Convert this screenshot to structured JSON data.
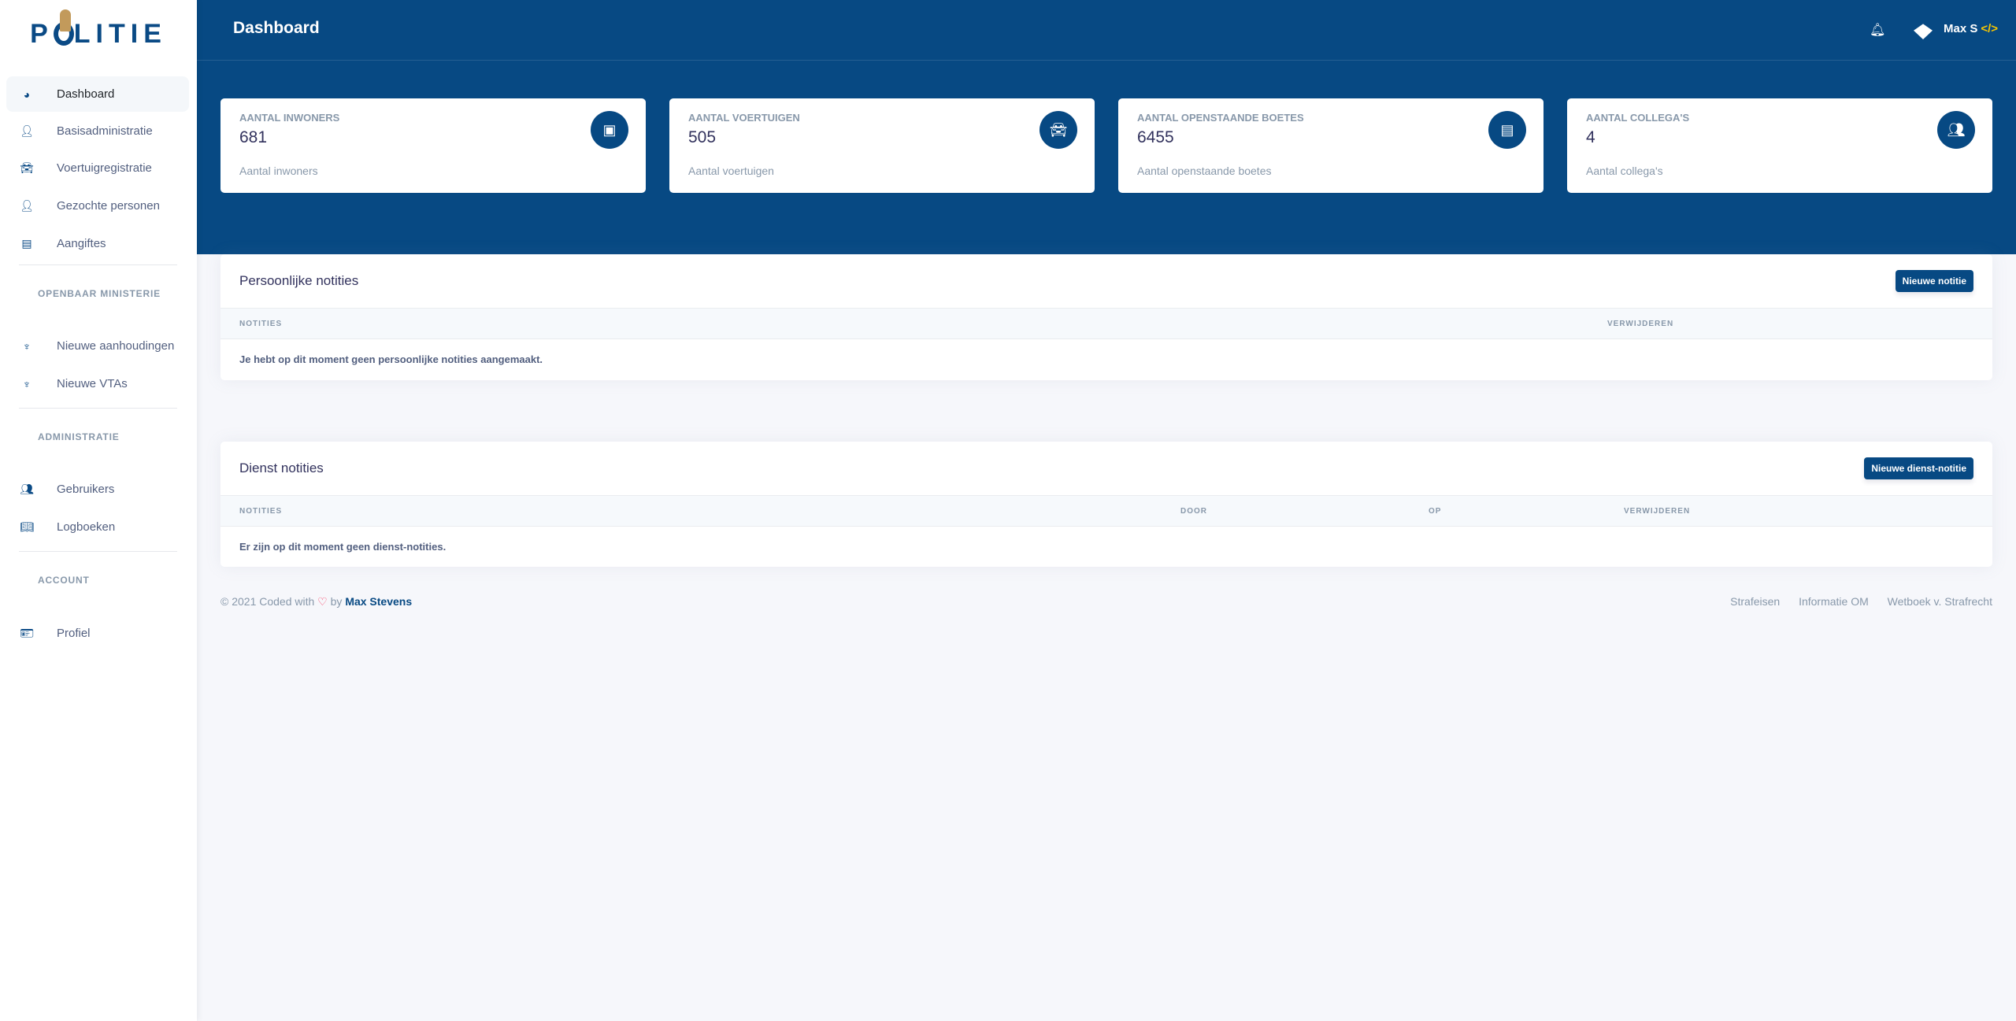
{
  "logo": "POLITIE",
  "sidebar": {
    "items": [
      {
        "label": "Dashboard",
        "icon": "pie-chart-icon"
      },
      {
        "label": "Basisadministratie",
        "icon": "user-icon"
      },
      {
        "label": "Voertuigregistratie",
        "icon": "car-icon"
      },
      {
        "label": "Gezochte personen",
        "icon": "user-lock-icon"
      },
      {
        "label": "Aangiftes",
        "icon": "file-icon"
      }
    ],
    "sections": [
      {
        "title": "OPENBAAR MINISTERIE",
        "items": [
          {
            "label": "Nieuwe aanhoudingen",
            "icon": "om-emblem-icon"
          },
          {
            "label": "Nieuwe VTAs",
            "icon": "om-emblem-icon"
          }
        ]
      },
      {
        "title": "ADMINISTRATIE",
        "items": [
          {
            "label": "Gebruikers",
            "icon": "users-icon"
          },
          {
            "label": "Logboeken",
            "icon": "book-icon"
          }
        ]
      },
      {
        "title": "ACCOUNT",
        "items": [
          {
            "label": "Profiel",
            "icon": "id-card-icon"
          }
        ]
      }
    ]
  },
  "header": {
    "title": "Dashboard",
    "user": "Max S",
    "user_tag": "</>"
  },
  "stats": [
    {
      "label": "Aantal inwoners",
      "value": "681",
      "sub": "Aantal inwoners",
      "icon": "id-card-icon"
    },
    {
      "label": "Aantal voertuigen",
      "value": "505",
      "sub": "Aantal voertuigen",
      "icon": "car-icon"
    },
    {
      "label": "Aantal openstaande boetes",
      "value": "6455",
      "sub": "Aantal openstaande boetes",
      "icon": "receipt-icon"
    },
    {
      "label": "Aantal collega's",
      "value": "4",
      "sub": "Aantal collega's",
      "icon": "users-icon"
    }
  ],
  "personal": {
    "title": "Persoonlijke notities",
    "button": "Nieuwe notitie",
    "columns": [
      "NOTITIES",
      "VERWIJDEREN"
    ],
    "empty": "Je hebt op dit moment geen persoonlijke notities aangemaakt."
  },
  "service": {
    "title": "Dienst notities",
    "button": "Nieuwe dienst-notitie",
    "columns": [
      "NOTITIES",
      "DOOR",
      "OP",
      "VERWIJDEREN"
    ],
    "empty": "Er zijn op dit moment geen dienst-notities."
  },
  "footer": {
    "copyright": "© 2021 Coded with",
    "by": "by",
    "author": "Max Stevens",
    "links": [
      "Strafeisen",
      "Informatie OM",
      "Wetboek v. Strafrecht"
    ]
  },
  "colors": {
    "primary": "#074983",
    "accent": "#f7c600",
    "gold": "#c29a5b",
    "heart": "#f5365c"
  }
}
